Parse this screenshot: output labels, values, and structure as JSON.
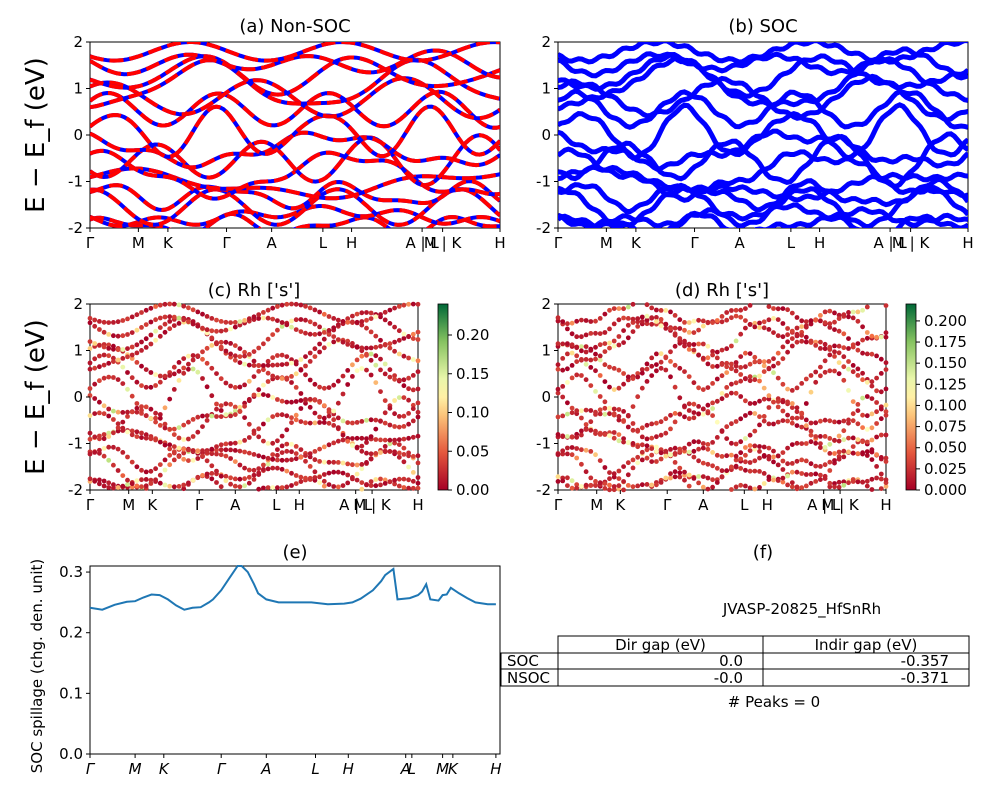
{
  "ylabel_bands": "E − E_f (eV)",
  "chart_data": [
    {
      "id": "a",
      "type": "line",
      "title": "(a) Non-SOC",
      "ylim": [
        -2,
        2
      ],
      "yticks": [
        "-2",
        "-1",
        "0",
        "1",
        "2"
      ],
      "xticks": [
        "Γ",
        "M",
        "K",
        "Γ",
        "A",
        "L",
        "H",
        "A | L",
        "M | K",
        "H"
      ],
      "colors": [
        "#ff0000",
        "#0000ff"
      ]
    },
    {
      "id": "b",
      "type": "line",
      "title": "(b) SOC",
      "ylim": [
        -2,
        2
      ],
      "yticks": [
        "-2",
        "-1",
        "0",
        "1",
        "2"
      ],
      "xticks": [
        "Γ",
        "M",
        "K",
        "Γ",
        "A",
        "L",
        "H",
        "A | L",
        "M | K",
        "H"
      ],
      "colors": [
        "#0000ff"
      ]
    },
    {
      "id": "c",
      "type": "scatter",
      "title": "(c)  Rh ['s']",
      "ylim": [
        -2,
        2
      ],
      "yticks": [
        "-2",
        "-1",
        "0",
        "1",
        "2"
      ],
      "xticks": [
        "Γ",
        "M",
        "K",
        "Γ",
        "A",
        "L",
        "H",
        "A | L",
        "M | K",
        "H"
      ],
      "colorbar": {
        "ticks": [
          "0.00",
          "0.05",
          "0.10",
          "0.15",
          "0.20"
        ],
        "range": [
          0,
          0.24
        ]
      }
    },
    {
      "id": "d",
      "type": "scatter",
      "title": "(d) Rh ['s']",
      "ylim": [
        -2,
        2
      ],
      "yticks": [
        "-2",
        "-1",
        "0",
        "1",
        "2"
      ],
      "xticks": [
        "Γ",
        "M",
        "K",
        "Γ",
        "A",
        "L",
        "H",
        "A | L",
        "M | K",
        "H"
      ],
      "colorbar": {
        "ticks": [
          "0.000",
          "0.025",
          "0.050",
          "0.075",
          "0.100",
          "0.125",
          "0.150",
          "0.175",
          "0.200"
        ],
        "range": [
          0,
          0.22
        ]
      }
    },
    {
      "id": "e",
      "type": "line",
      "title": "(e)",
      "ylabel": "SOC spillage (chg. den. unit)",
      "ylim": [
        0,
        0.31
      ],
      "yticks": [
        "0.0",
        "0.1",
        "0.2",
        "0.3"
      ],
      "xticks": [
        "Γ",
        "M",
        "K",
        "Γ",
        "A",
        "L",
        "H",
        "A",
        "L",
        "M",
        "K",
        "H"
      ],
      "color": "#1f77b4",
      "x": [
        0,
        0.03,
        0.06,
        0.09,
        0.11,
        0.13,
        0.15,
        0.17,
        0.19,
        0.21,
        0.23,
        0.25,
        0.27,
        0.29,
        0.3,
        0.32,
        0.34,
        0.36,
        0.37,
        0.385,
        0.4,
        0.41,
        0.43,
        0.46,
        0.5,
        0.54,
        0.58,
        0.62,
        0.64,
        0.66,
        0.69,
        0.71,
        0.72,
        0.74,
        0.75,
        0.78,
        0.8,
        0.81,
        0.82,
        0.83,
        0.85,
        0.86,
        0.87,
        0.88,
        0.9,
        0.92,
        0.94,
        0.97,
        0.99
      ],
      "y": [
        0.241,
        0.238,
        0.246,
        0.251,
        0.252,
        0.258,
        0.263,
        0.262,
        0.255,
        0.245,
        0.238,
        0.241,
        0.242,
        0.25,
        0.255,
        0.27,
        0.29,
        0.31,
        0.31,
        0.3,
        0.28,
        0.265,
        0.255,
        0.25,
        0.25,
        0.25,
        0.247,
        0.248,
        0.25,
        0.256,
        0.27,
        0.285,
        0.295,
        0.305,
        0.255,
        0.257,
        0.262,
        0.268,
        0.28,
        0.255,
        0.253,
        0.262,
        0.263,
        0.274,
        0.265,
        0.257,
        0.25,
        0.247,
        0.247
      ]
    }
  ],
  "panel_f": {
    "title": "(f)",
    "material": "JVASP-20825_HfSnRh",
    "table": {
      "headers": [
        "Dir gap (eV)",
        "Indir gap (eV)"
      ],
      "rows": [
        {
          "label": "SOC",
          "dir": "0.0",
          "indir": "-0.357"
        },
        {
          "label": "NSOC",
          "dir": "-0.0",
          "indir": "-0.371"
        }
      ]
    },
    "peaks": "# Peaks = 0"
  }
}
